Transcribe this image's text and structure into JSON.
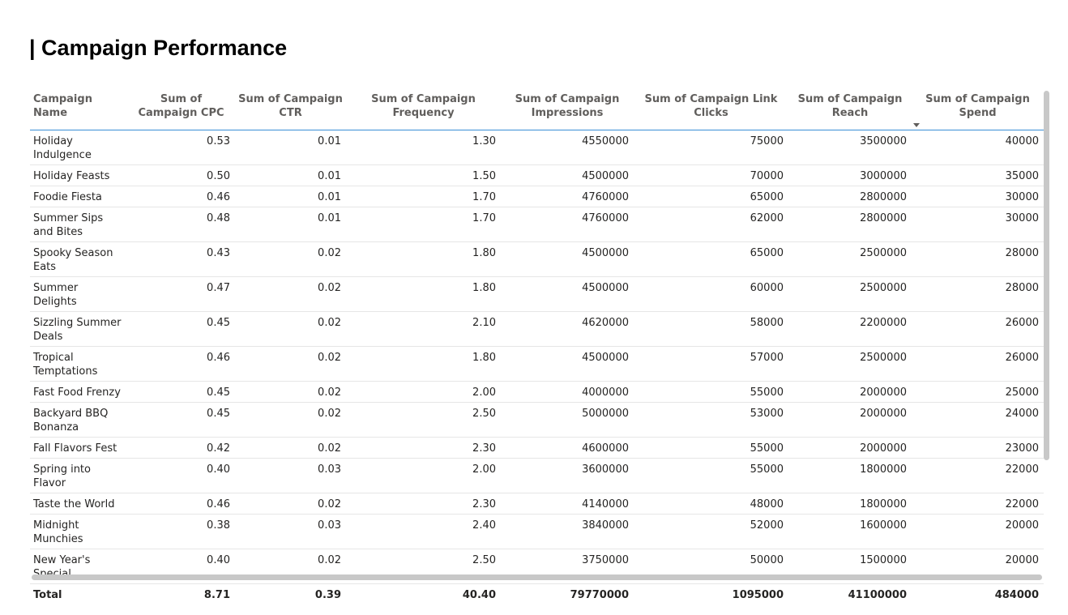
{
  "page": {
    "title": "| Campaign Performance"
  },
  "table": {
    "columns": [
      "Campaign Name",
      "Sum of Campaign CPC",
      "Sum of Campaign CTR",
      "Sum of Campaign Frequency",
      "Sum of Campaign Impressions",
      "Sum of Campaign Link Clicks",
      "Sum of Campaign Reach",
      "Sum of Campaign Spend"
    ],
    "rows": [
      [
        "Holiday Indulgence",
        "0.53",
        "0.01",
        "1.30",
        "4550000",
        "75000",
        "3500000",
        "40000"
      ],
      [
        "Holiday Feasts",
        "0.50",
        "0.01",
        "1.50",
        "4500000",
        "70000",
        "3000000",
        "35000"
      ],
      [
        "Foodie Fiesta",
        "0.46",
        "0.01",
        "1.70",
        "4760000",
        "65000",
        "2800000",
        "30000"
      ],
      [
        "Summer Sips and Bites",
        "0.48",
        "0.01",
        "1.70",
        "4760000",
        "62000",
        "2800000",
        "30000"
      ],
      [
        "Spooky Season Eats",
        "0.43",
        "0.02",
        "1.80",
        "4500000",
        "65000",
        "2500000",
        "28000"
      ],
      [
        "Summer Delights",
        "0.47",
        "0.02",
        "1.80",
        "4500000",
        "60000",
        "2500000",
        "28000"
      ],
      [
        "Sizzling Summer Deals",
        "0.45",
        "0.02",
        "2.10",
        "4620000",
        "58000",
        "2200000",
        "26000"
      ],
      [
        "Tropical Temptations",
        "0.46",
        "0.02",
        "1.80",
        "4500000",
        "57000",
        "2500000",
        "26000"
      ],
      [
        "Fast Food Frenzy",
        "0.45",
        "0.02",
        "2.00",
        "4000000",
        "55000",
        "2000000",
        "25000"
      ],
      [
        "Backyard BBQ Bonanza",
        "0.45",
        "0.02",
        "2.50",
        "5000000",
        "53000",
        "2000000",
        "24000"
      ],
      [
        "Fall Flavors Fest",
        "0.42",
        "0.02",
        "2.30",
        "4600000",
        "55000",
        "2000000",
        "23000"
      ],
      [
        "Spring into Flavor",
        "0.40",
        "0.03",
        "2.00",
        "3600000",
        "55000",
        "1800000",
        "22000"
      ],
      [
        "Taste the World",
        "0.46",
        "0.02",
        "2.30",
        "4140000",
        "48000",
        "1800000",
        "22000"
      ],
      [
        "Midnight Munchies",
        "0.38",
        "0.03",
        "2.40",
        "3840000",
        "52000",
        "1600000",
        "20000"
      ],
      [
        "New Year's Special",
        "0.40",
        "0.02",
        "2.50",
        "3750000",
        "50000",
        "1500000",
        "20000"
      ]
    ],
    "total": [
      "Total",
      "8.71",
      "0.39",
      "40.40",
      "79770000",
      "1095000",
      "41100000",
      "484000"
    ]
  }
}
